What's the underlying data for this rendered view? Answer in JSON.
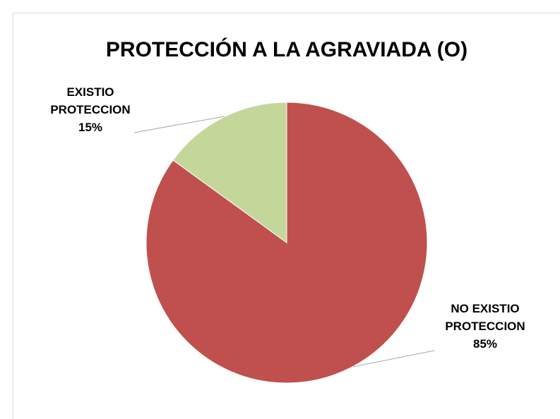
{
  "chart_data": {
    "type": "pie",
    "title": "PROTECCIÓN A LA AGRAVIADA (O)",
    "categories": [
      "NO EXISTIO PROTECCION",
      "EXISTIO PROTECCION"
    ],
    "values": [
      85,
      15
    ],
    "value_labels": [
      "85%",
      "15%"
    ],
    "colors": [
      "#c0504d",
      "#c4d79b"
    ]
  }
}
